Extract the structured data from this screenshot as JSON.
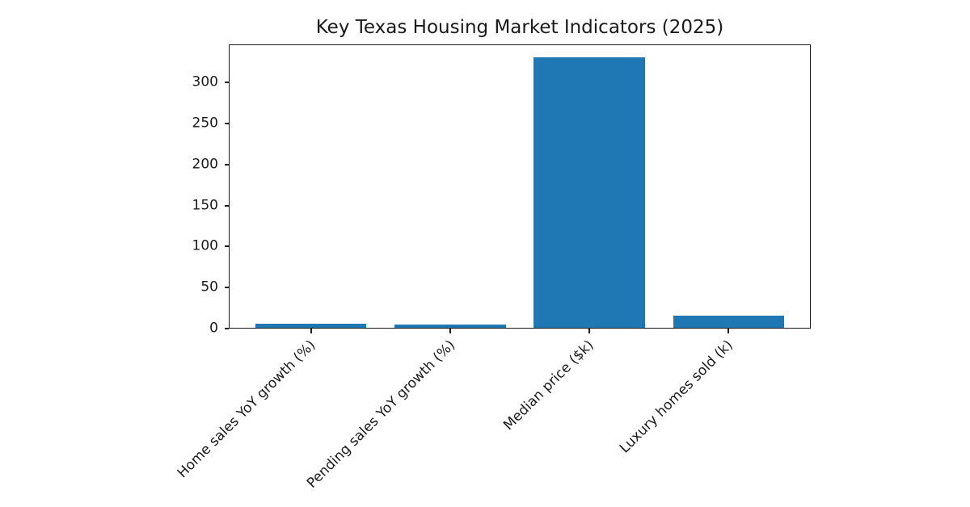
{
  "chart_data": {
    "type": "bar",
    "title": "Key Texas Housing Market Indicators (2025)",
    "categories": [
      "Home sales YoY growth (%)",
      "Pending sales YoY growth (%)",
      "Median price ($k)",
      "Luxury homes sold (k)"
    ],
    "values": [
      5,
      4,
      330,
      15
    ],
    "xlabel": "",
    "ylabel": "",
    "yticks": [
      0,
      50,
      100,
      150,
      200,
      250,
      300
    ],
    "ylim": [
      0,
      346.5
    ],
    "bar_width_ratio": 0.8,
    "grid": false,
    "legend_position": "none",
    "colors": {
      "bar": "#1f77b4",
      "axis": "#1a1a1a",
      "text": "#1a1a1a",
      "background": "#ffffff"
    }
  }
}
